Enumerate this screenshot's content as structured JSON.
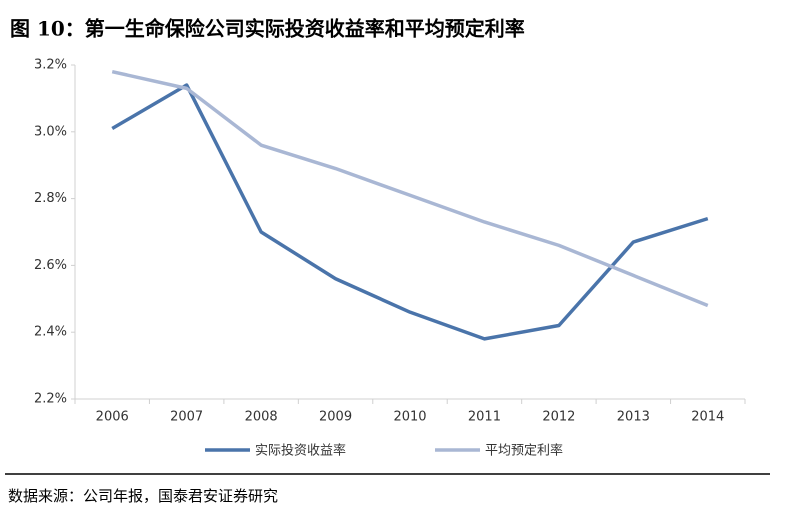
{
  "chart_data": {
    "type": "line",
    "title": "图 10：第一生命保险公司实际投资收益率和平均预定利率",
    "source": "数据来源：公司年报，国泰君安证券研究",
    "categories": [
      "2006",
      "2007",
      "2008",
      "2009",
      "2010",
      "2011",
      "2012",
      "2013",
      "2014"
    ],
    "series": [
      {
        "name": "实际投资收益率",
        "color": "#4a74aa",
        "values": [
          3.01,
          3.14,
          2.7,
          2.56,
          2.46,
          2.38,
          2.42,
          2.67,
          2.74
        ]
      },
      {
        "name": "平均预定利率",
        "color": "#a9b7d4",
        "values": [
          3.18,
          3.13,
          2.96,
          2.89,
          2.81,
          2.73,
          2.66,
          2.57,
          2.48
        ]
      }
    ],
    "ylim": [
      2.2,
      3.2
    ],
    "yticks": [
      {
        "value": 2.2,
        "label": "2.2%"
      },
      {
        "value": 2.4,
        "label": "2.4%"
      },
      {
        "value": 2.6,
        "label": "2.6%"
      },
      {
        "value": 2.8,
        "label": "2.8%"
      },
      {
        "value": 3.0,
        "label": "3.0%"
      },
      {
        "value": 3.2,
        "label": "3.2%"
      }
    ]
  }
}
